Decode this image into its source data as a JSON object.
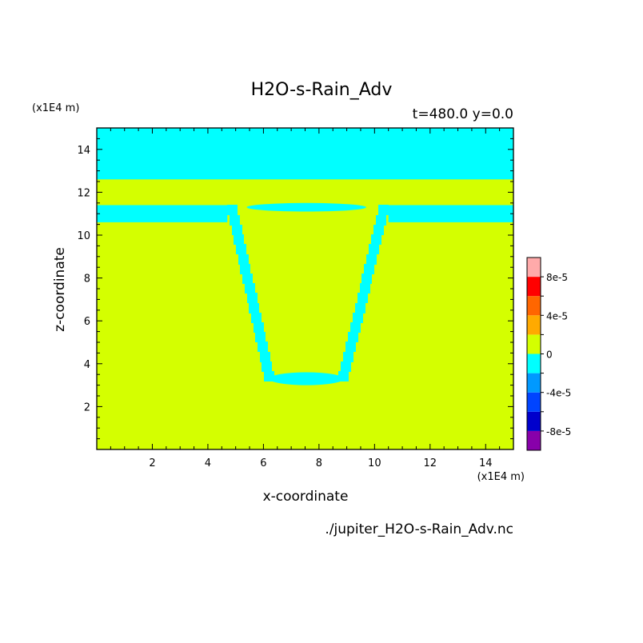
{
  "chart_data": {
    "type": "heatmap",
    "title": "H2O-s-Rain_Adv",
    "time_label": "t=480.0 y=0.0",
    "xlabel": "x-coordinate",
    "ylabel": "z-coordinate",
    "x_unit": "(x1E4 m)",
    "y_unit": "(x1E4 m)",
    "xlim": [
      0,
      15
    ],
    "ylim": [
      0,
      15
    ],
    "x_ticks": [
      "2",
      "4",
      "6",
      "8",
      "10",
      "12",
      "14"
    ],
    "y_ticks": [
      "2",
      "4",
      "6",
      "8",
      "10",
      "12",
      "14"
    ],
    "colorbar": {
      "levels": [
        -0.0001,
        -8e-05,
        -6e-05,
        -4e-05,
        -2e-05,
        0,
        2e-05,
        4e-05,
        6e-05,
        8e-05,
        0.0001
      ],
      "colors": [
        "#8800aa",
        "#0000cc",
        "#0044ff",
        "#0099ff",
        "#00ffff",
        "#d4ff00",
        "#ffaa00",
        "#ff6600",
        "#ff0000",
        "#ffaaaa"
      ],
      "tick_labels": [
        "-8e-5",
        "-4e-5",
        "0",
        "4e-5",
        "8e-5"
      ]
    },
    "background_color": "#d4ff00",
    "negative_color": "#00ffff",
    "regions_negative": [
      {
        "name": "upper-band",
        "z_range": [
          12.6,
          15.0
        ]
      },
      {
        "name": "left-shelf",
        "x_range": [
          0,
          4.7
        ],
        "z_range": [
          10.6,
          11.4
        ]
      },
      {
        "name": "right-shelf",
        "x_range": [
          10.5,
          15.0
        ],
        "z_range": [
          10.6,
          11.4
        ]
      },
      {
        "name": "upper-lens",
        "x_range": [
          5.4,
          9.7
        ],
        "z_range": [
          11.1,
          11.5
        ]
      },
      {
        "name": "lower-lens",
        "x_range": [
          6.2,
          8.9
        ],
        "z_range": [
          3.0,
          3.6
        ]
      },
      {
        "name": "left-wall",
        "from": [
          4.7,
          11.4
        ],
        "to": [
          6.1,
          3.2
        ]
      },
      {
        "name": "right-wall",
        "from": [
          10.5,
          11.4
        ],
        "to": [
          9.0,
          3.2
        ]
      }
    ],
    "file_label": "./jupiter_H2O-s-Rain_Adv.nc"
  }
}
